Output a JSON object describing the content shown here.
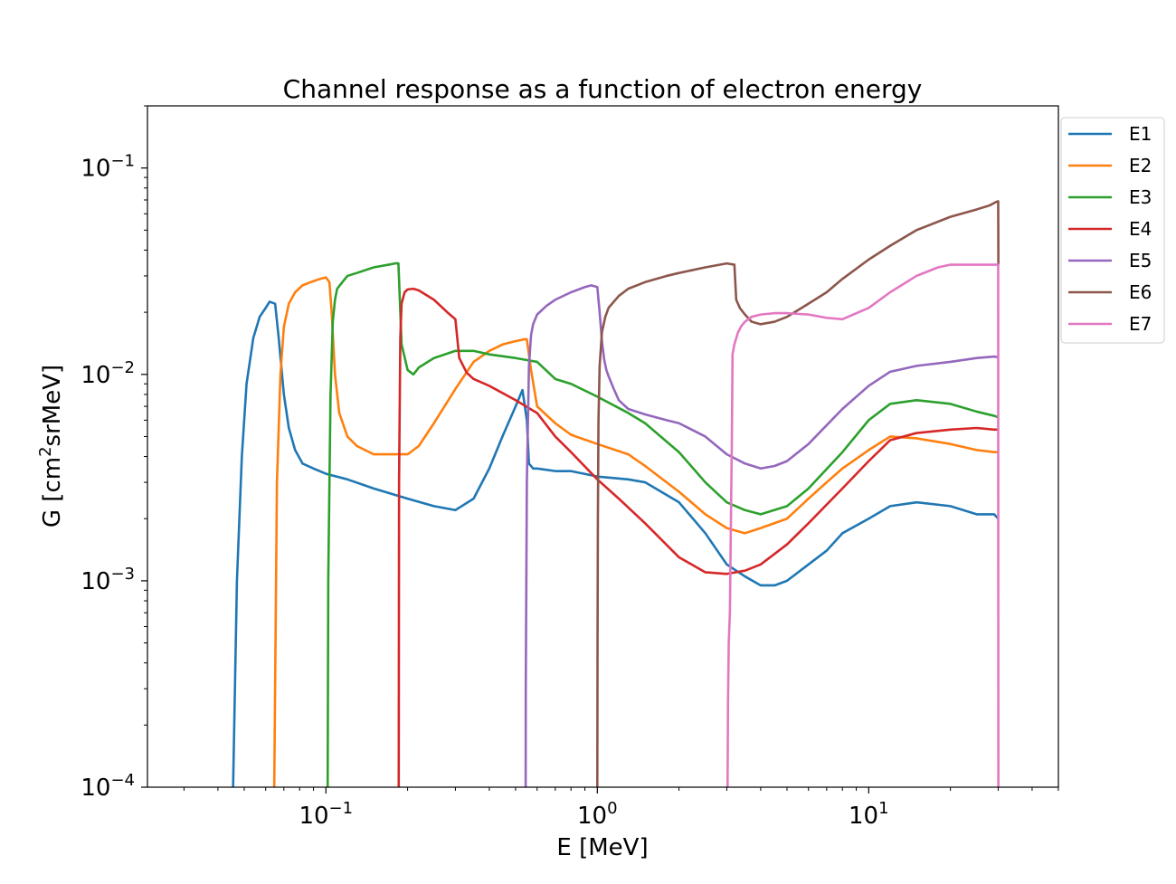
{
  "chart_data": {
    "type": "line",
    "title": "Channel response as a function of electron energy",
    "xlabel": "E [MeV]",
    "ylabel_main": "G [cm",
    "ylabel_sup": "2",
    "ylabel_tail": "srMeV]",
    "xscale": "log",
    "yscale": "log",
    "xlim": [
      0.022,
      50
    ],
    "ylim": [
      0.0001,
      0.2
    ],
    "x_ticks": [
      {
        "value": 0.1,
        "base": "10",
        "exp": "−1"
      },
      {
        "value": 1,
        "base": "10",
        "exp": "0"
      },
      {
        "value": 10,
        "base": "10",
        "exp": "1"
      }
    ],
    "y_ticks": [
      {
        "value": 0.0001,
        "base": "10",
        "exp": "−4"
      },
      {
        "value": 0.001,
        "base": "10",
        "exp": "−3"
      },
      {
        "value": 0.01,
        "base": "10",
        "exp": "−2"
      },
      {
        "value": 0.1,
        "base": "10",
        "exp": "−1"
      }
    ],
    "legend_position": "outside-top-right",
    "grid": false,
    "series": [
      {
        "name": "E1",
        "color": "#1f77b4",
        "x": [
          0.0455,
          0.047,
          0.049,
          0.051,
          0.054,
          0.057,
          0.06,
          0.062,
          0.065,
          0.067,
          0.07,
          0.073,
          0.077,
          0.082,
          0.09,
          0.1,
          0.12,
          0.15,
          0.2,
          0.25,
          0.3,
          0.35,
          0.4,
          0.45,
          0.5,
          0.53,
          0.55,
          0.56,
          0.58,
          0.6,
          0.7,
          0.8,
          1.0,
          1.3,
          1.5,
          2.0,
          2.5,
          3.0,
          3.5,
          4.0,
          4.5,
          5.0,
          6.0,
          7.0,
          8.0,
          10,
          12,
          15,
          20,
          25,
          29,
          30
        ],
        "y": [
          0.0001,
          0.001,
          0.004,
          0.009,
          0.015,
          0.019,
          0.021,
          0.0225,
          0.022,
          0.015,
          0.008,
          0.0055,
          0.0043,
          0.0037,
          0.0035,
          0.0033,
          0.0031,
          0.0028,
          0.0025,
          0.0023,
          0.0022,
          0.0025,
          0.0035,
          0.0051,
          0.007,
          0.0084,
          0.006,
          0.0037,
          0.0035,
          0.0035,
          0.0034,
          0.0034,
          0.0032,
          0.0031,
          0.003,
          0.0024,
          0.0017,
          0.0012,
          0.00105,
          0.00095,
          0.00095,
          0.001,
          0.0012,
          0.0014,
          0.0017,
          0.002,
          0.0023,
          0.0024,
          0.0023,
          0.0021,
          0.0021,
          0.002
        ]
      },
      {
        "name": "E2",
        "color": "#ff7f0e",
        "x": [
          0.0645,
          0.066,
          0.068,
          0.07,
          0.073,
          0.077,
          0.082,
          0.088,
          0.095,
          0.1,
          0.103,
          0.105,
          0.108,
          0.112,
          0.12,
          0.13,
          0.15,
          0.18,
          0.2,
          0.22,
          0.25,
          0.3,
          0.35,
          0.4,
          0.45,
          0.5,
          0.54,
          0.55,
          0.57,
          0.6,
          0.7,
          0.8,
          1.0,
          1.3,
          1.5,
          2.0,
          2.5,
          3.0,
          3.5,
          4.0,
          5.0,
          6.0,
          7.0,
          8.0,
          10,
          12,
          15,
          20,
          25,
          29,
          30
        ],
        "y": [
          0.0001,
          0.003,
          0.01,
          0.017,
          0.022,
          0.025,
          0.027,
          0.028,
          0.029,
          0.0295,
          0.028,
          0.02,
          0.01,
          0.0065,
          0.005,
          0.0045,
          0.0041,
          0.0041,
          0.0041,
          0.0045,
          0.0058,
          0.0085,
          0.0115,
          0.013,
          0.014,
          0.0145,
          0.0148,
          0.0148,
          0.0105,
          0.007,
          0.0058,
          0.0051,
          0.0046,
          0.0041,
          0.0036,
          0.0027,
          0.0021,
          0.0018,
          0.0017,
          0.0018,
          0.002,
          0.0025,
          0.003,
          0.0035,
          0.0043,
          0.005,
          0.0049,
          0.0046,
          0.0043,
          0.0042,
          0.0042
        ]
      },
      {
        "name": "E3",
        "color": "#2ca02c",
        "x": [
          0.1015,
          0.102,
          0.104,
          0.106,
          0.108,
          0.11,
          0.115,
          0.12,
          0.13,
          0.15,
          0.17,
          0.18,
          0.185,
          0.19,
          0.2,
          0.21,
          0.22,
          0.25,
          0.3,
          0.35,
          0.4,
          0.5,
          0.6,
          0.7,
          0.8,
          1.0,
          1.3,
          1.5,
          2.0,
          2.5,
          3.0,
          3.5,
          4.0,
          5.0,
          6.0,
          8.0,
          10,
          12,
          15,
          20,
          25,
          29,
          30
        ],
        "y": [
          0.0001,
          0.001,
          0.008,
          0.018,
          0.023,
          0.026,
          0.028,
          0.03,
          0.031,
          0.033,
          0.034,
          0.0345,
          0.0345,
          0.014,
          0.0105,
          0.01,
          0.0108,
          0.012,
          0.013,
          0.013,
          0.0125,
          0.012,
          0.0115,
          0.0095,
          0.009,
          0.0078,
          0.0065,
          0.0058,
          0.0042,
          0.003,
          0.0024,
          0.0022,
          0.0021,
          0.0023,
          0.0028,
          0.0042,
          0.006,
          0.0072,
          0.0075,
          0.0072,
          0.0066,
          0.0063,
          0.0062
        ]
      },
      {
        "name": "E4",
        "color": "#d62728",
        "x": [
          0.1855,
          0.186,
          0.188,
          0.19,
          0.195,
          0.2,
          0.21,
          0.22,
          0.25,
          0.28,
          0.3,
          0.31,
          0.33,
          0.35,
          0.4,
          0.5,
          0.6,
          0.7,
          0.8,
          1.0,
          1.2,
          1.5,
          2.0,
          2.5,
          3.0,
          3.5,
          4.0,
          5.0,
          6.0,
          8.0,
          10,
          12,
          15,
          20,
          25,
          29,
          30
        ],
        "y": [
          0.0001,
          0.003,
          0.015,
          0.022,
          0.025,
          0.0258,
          0.026,
          0.0255,
          0.023,
          0.02,
          0.0185,
          0.012,
          0.0102,
          0.0095,
          0.0088,
          0.0075,
          0.0065,
          0.005,
          0.0042,
          0.0031,
          0.0025,
          0.0019,
          0.0013,
          0.0011,
          0.00108,
          0.00112,
          0.0012,
          0.0015,
          0.0019,
          0.0028,
          0.0038,
          0.0048,
          0.0052,
          0.0054,
          0.0055,
          0.0054,
          0.0054
        ]
      },
      {
        "name": "E5",
        "color": "#9467bd",
        "x": [
          0.5445,
          0.545,
          0.55,
          0.56,
          0.57,
          0.58,
          0.6,
          0.65,
          0.7,
          0.8,
          0.9,
          0.95,
          1.0,
          1.02,
          1.04,
          1.06,
          1.08,
          1.1,
          1.15,
          1.2,
          1.3,
          1.5,
          1.8,
          2.0,
          2.5,
          3.0,
          3.5,
          4.0,
          4.5,
          5.0,
          6.0,
          8.0,
          10,
          12,
          15,
          20,
          25,
          29,
          30
        ],
        "y": [
          0.0001,
          0.0003,
          0.003,
          0.011,
          0.0155,
          0.0175,
          0.0195,
          0.0215,
          0.023,
          0.025,
          0.0265,
          0.027,
          0.0265,
          0.02,
          0.0145,
          0.0118,
          0.0105,
          0.0098,
          0.0085,
          0.0075,
          0.0068,
          0.0064,
          0.006,
          0.0058,
          0.005,
          0.0041,
          0.0037,
          0.0035,
          0.0036,
          0.0038,
          0.0046,
          0.0068,
          0.0088,
          0.0103,
          0.011,
          0.0115,
          0.012,
          0.0122,
          0.0121
        ]
      },
      {
        "name": "E6",
        "color": "#8c564b",
        "x": [
          1.0,
          1.002,
          1.005,
          1.01,
          1.02,
          1.04,
          1.07,
          1.1,
          1.2,
          1.3,
          1.5,
          1.8,
          2.0,
          2.5,
          3.0,
          3.2,
          3.25,
          3.35,
          3.5,
          3.7,
          4.0,
          4.5,
          5.0,
          6.0,
          7.0,
          8.0,
          10,
          12,
          15,
          20,
          25,
          28,
          29.5,
          30,
          30.05
        ],
        "y": [
          0.0001,
          0.0005,
          0.002,
          0.006,
          0.011,
          0.016,
          0.019,
          0.021,
          0.024,
          0.026,
          0.028,
          0.03,
          0.031,
          0.033,
          0.0345,
          0.034,
          0.023,
          0.021,
          0.0195,
          0.018,
          0.0175,
          0.018,
          0.019,
          0.022,
          0.025,
          0.029,
          0.036,
          0.042,
          0.05,
          0.058,
          0.063,
          0.066,
          0.0685,
          0.069,
          0.034
        ]
      },
      {
        "name": "E7",
        "color": "#e377c2",
        "x": [
          3.02,
          3.03,
          3.05,
          3.08,
          3.1,
          3.13,
          3.15,
          3.2,
          3.3,
          3.4,
          3.5,
          3.7,
          4.0,
          4.5,
          5.0,
          6.0,
          7.0,
          8.0,
          10,
          12,
          15,
          18,
          20,
          25,
          29,
          30,
          30.02,
          30.05
        ],
        "y": [
          0.0001,
          0.00025,
          0.0005,
          0.0007,
          0.0015,
          0.0045,
          0.0125,
          0.014,
          0.016,
          0.0172,
          0.018,
          0.019,
          0.0195,
          0.0198,
          0.0198,
          0.0195,
          0.0188,
          0.0185,
          0.021,
          0.025,
          0.03,
          0.033,
          0.034,
          0.034,
          0.034,
          0.034,
          0.001,
          0.0001
        ]
      }
    ]
  }
}
